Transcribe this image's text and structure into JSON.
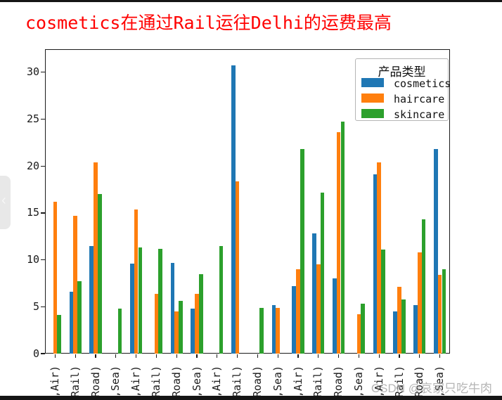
{
  "page": {
    "title": "cosmetics在通过Rail运往Delhi的运费最高",
    "watermark": "CSDN @哀家只吃牛肉"
  },
  "chart_data": {
    "type": "bar",
    "title": "cosmetics在通过Rail运往Delhi的运费最高",
    "categories": [
      ",Air)",
      ",Rail)",
      ",Road)",
      ",Sea)",
      ",Air)",
      ",Rail)",
      ",Road)",
      ",Sea)",
      ",Air)",
      ",Rail)",
      ",Road)",
      ",Sea)",
      ",Air)",
      ",Rail)",
      ",Road)",
      ",Sea)",
      ",Air)",
      ",Rail)",
      ",Road)",
      ",Sea)"
    ],
    "series": [
      {
        "name": "cosmetics",
        "color": "#1f77b4",
        "values": [
          0,
          6.6,
          11.5,
          0,
          9.6,
          0,
          9.7,
          4.8,
          0,
          30.7,
          0,
          5.2,
          7.2,
          12.8,
          8.0,
          0,
          19.1,
          4.5,
          5.2,
          21.8
        ]
      },
      {
        "name": "haircare",
        "color": "#ff7f0e",
        "values": [
          16.2,
          14.7,
          20.4,
          0,
          15.4,
          6.4,
          4.5,
          6.4,
          0,
          18.4,
          0,
          4.9,
          9.0,
          9.5,
          23.6,
          4.2,
          20.4,
          7.1,
          10.8,
          8.4
        ]
      },
      {
        "name": "skincare",
        "color": "#2ca02c",
        "values": [
          4.1,
          7.7,
          17.0,
          4.8,
          11.3,
          11.2,
          5.6,
          8.5,
          11.5,
          0,
          4.9,
          0,
          21.8,
          17.2,
          24.7,
          5.3,
          11.1,
          5.8,
          14.3,
          9.0
        ]
      }
    ],
    "xlabel": "",
    "ylabel": "",
    "yticks": [
      0,
      5,
      10,
      15,
      20,
      25,
      30
    ],
    "ylim": [
      0,
      32.45
    ],
    "legend": {
      "title": "产品类型",
      "position": "upper right"
    },
    "grid": false
  }
}
